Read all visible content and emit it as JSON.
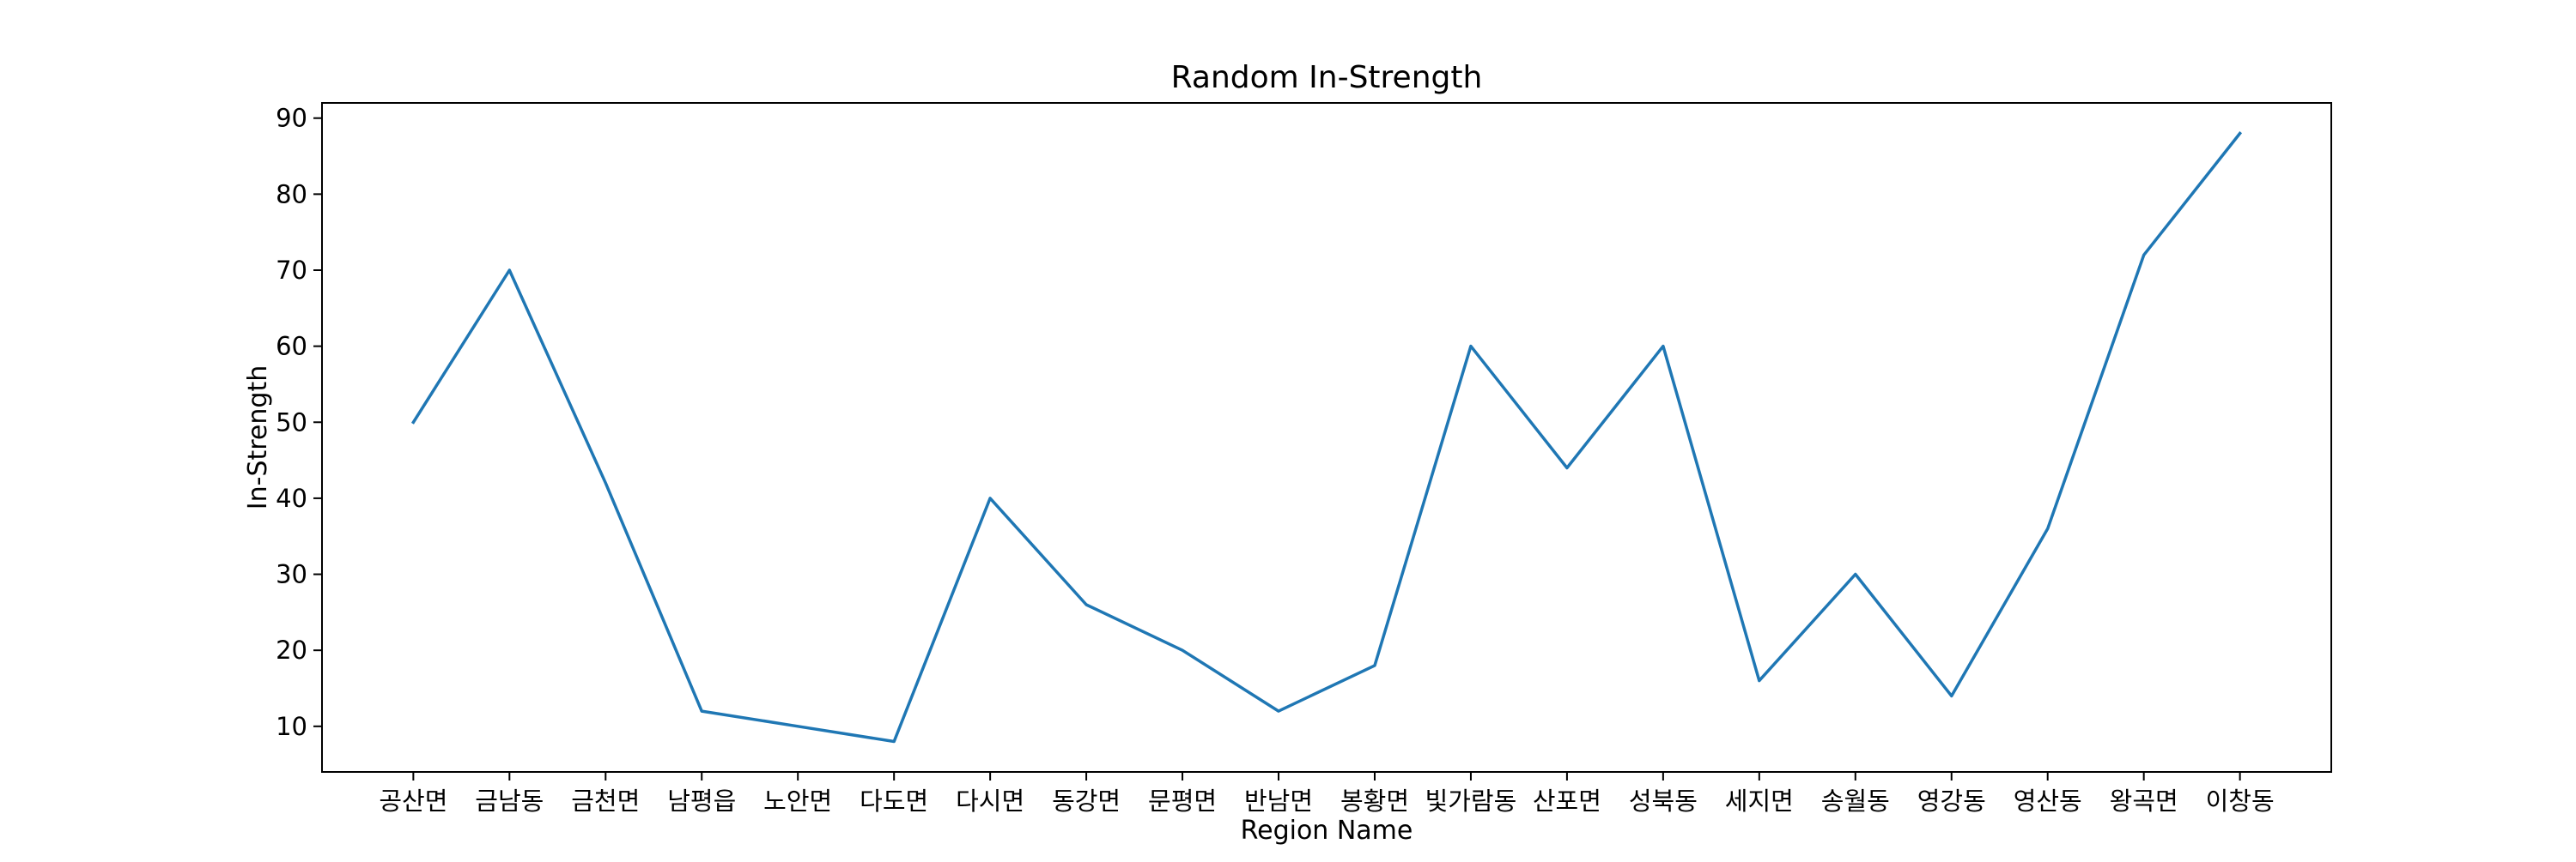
{
  "chart_data": {
    "type": "line",
    "title": "Random In-Strength",
    "xlabel": "Region Name",
    "ylabel": "In-Strength",
    "categories": [
      "공산면",
      "금남동",
      "금천면",
      "남평읍",
      "노안면",
      "다도면",
      "다시면",
      "동강면",
      "문평면",
      "반남면",
      "봉황면",
      "빛가람동",
      "산포면",
      "성북동",
      "세지면",
      "송월동",
      "영강동",
      "영산동",
      "왕곡면",
      "이창동"
    ],
    "series": [
      {
        "values": [
          50,
          70,
          42,
          12,
          10,
          8,
          40,
          26,
          20,
          12,
          18,
          60,
          44,
          60,
          16,
          30,
          14,
          36,
          72,
          88
        ],
        "color": "#1f77b4"
      }
    ],
    "ylim": [
      4.0,
      92.0
    ],
    "yticks": [
      10,
      20,
      30,
      40,
      50,
      60,
      70,
      80,
      90
    ],
    "grid": false,
    "legend": "none"
  }
}
